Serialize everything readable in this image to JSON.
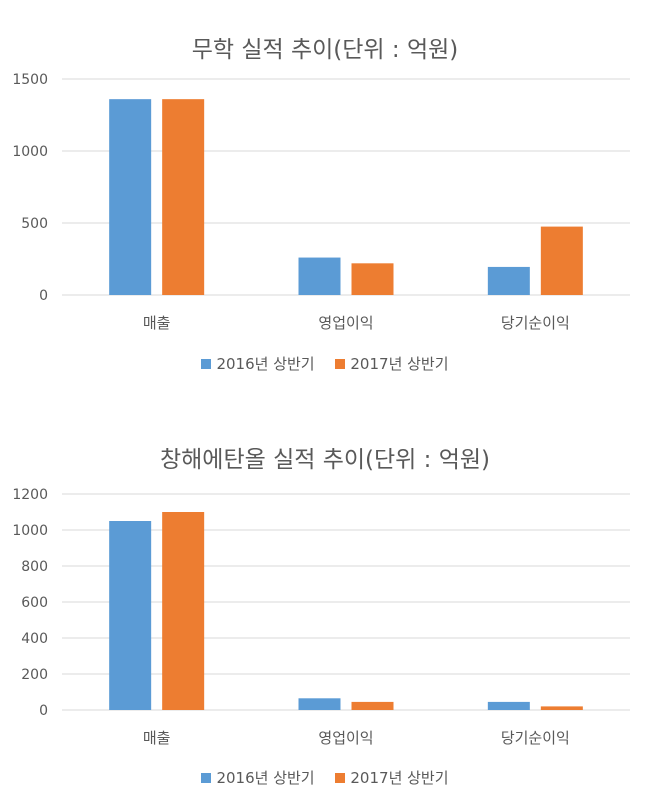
{
  "colors": {
    "series1": "#5b9bd5",
    "series2": "#ed7d31",
    "grid": "#d9d9d9",
    "text": "#595959"
  },
  "chart_data": [
    {
      "type": "bar",
      "title": "무학 실적 추이(단위 : 억원)",
      "categories": [
        "매출",
        "영업이익",
        "당기순이익"
      ],
      "series": [
        {
          "name": "2016년 상반기",
          "values": [
            1360,
            260,
            195
          ]
        },
        {
          "name": "2017년 상반기",
          "values": [
            1360,
            220,
            475
          ]
        }
      ],
      "yticks": [
        0,
        500,
        1000,
        1500
      ],
      "ylim": [
        0,
        1500
      ],
      "xlabel": "",
      "ylabel": "",
      "legend": "bottom"
    },
    {
      "type": "bar",
      "title": "창해에탄올 실적 추이(단위 : 억원)",
      "categories": [
        "매출",
        "영업이익",
        "당기순이익"
      ],
      "series": [
        {
          "name": "2016년 상반기",
          "values": [
            1050,
            65,
            45
          ]
        },
        {
          "name": "2017년 상반기",
          "values": [
            1100,
            45,
            20
          ]
        }
      ],
      "yticks": [
        0,
        200,
        400,
        600,
        800,
        1000,
        1200
      ],
      "ylim": [
        0,
        1200
      ],
      "xlabel": "",
      "ylabel": "",
      "legend": "bottom"
    }
  ]
}
